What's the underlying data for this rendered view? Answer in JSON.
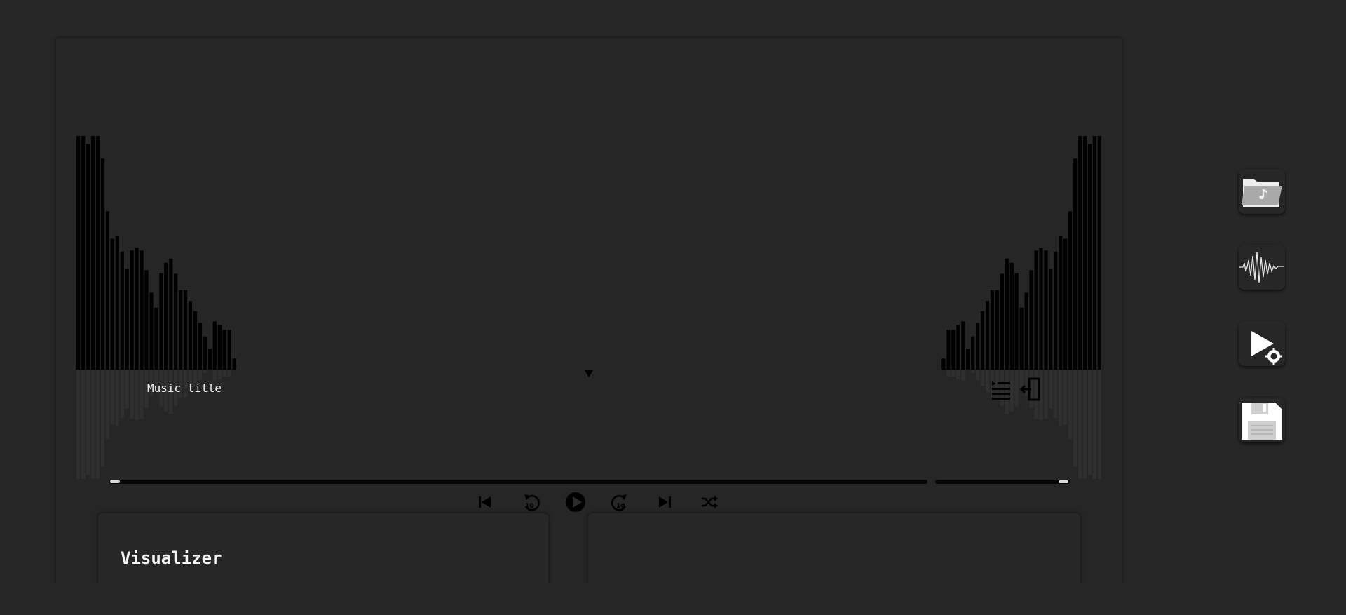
{
  "player": {
    "music_title": "Music title"
  },
  "spectrum": {
    "bar_levels": [
      1.0,
      1.0,
      0.965,
      1.0,
      1.0,
      0.903,
      0.678,
      0.56,
      0.574,
      0.505,
      0.43,
      0.51,
      0.522,
      0.51,
      0.426,
      0.329,
      0.265,
      0.412,
      0.457,
      0.475,
      0.41,
      0.34,
      0.34,
      0.294,
      0.25,
      0.2,
      0.142,
      0.089,
      0.206,
      0.191,
      0.17,
      0.17,
      0.047
    ]
  },
  "playback": {
    "progress": 0.0,
    "volume": 1.0
  },
  "cards": {
    "visualizer_heading": "Visualizer"
  },
  "colors": {
    "background": "#272727",
    "bars": "#000000",
    "bar_reflection": "#2f2f2f",
    "track": "#060606"
  },
  "icons": {
    "dropdown": "caret-down-icon",
    "playlist": "playlist-icon",
    "exit": "exit-icon",
    "prev": "skip-previous-icon",
    "rewind": "rewind-10-icon",
    "play": "play-circle-icon",
    "forward": "forward-10-icon",
    "next": "skip-next-icon",
    "shuffle": "shuffle-icon",
    "open_folder": "music-folder-icon",
    "waveform": "waveform-icon",
    "play_settings": "play-settings-icon",
    "save": "floppy-disk-icon"
  }
}
